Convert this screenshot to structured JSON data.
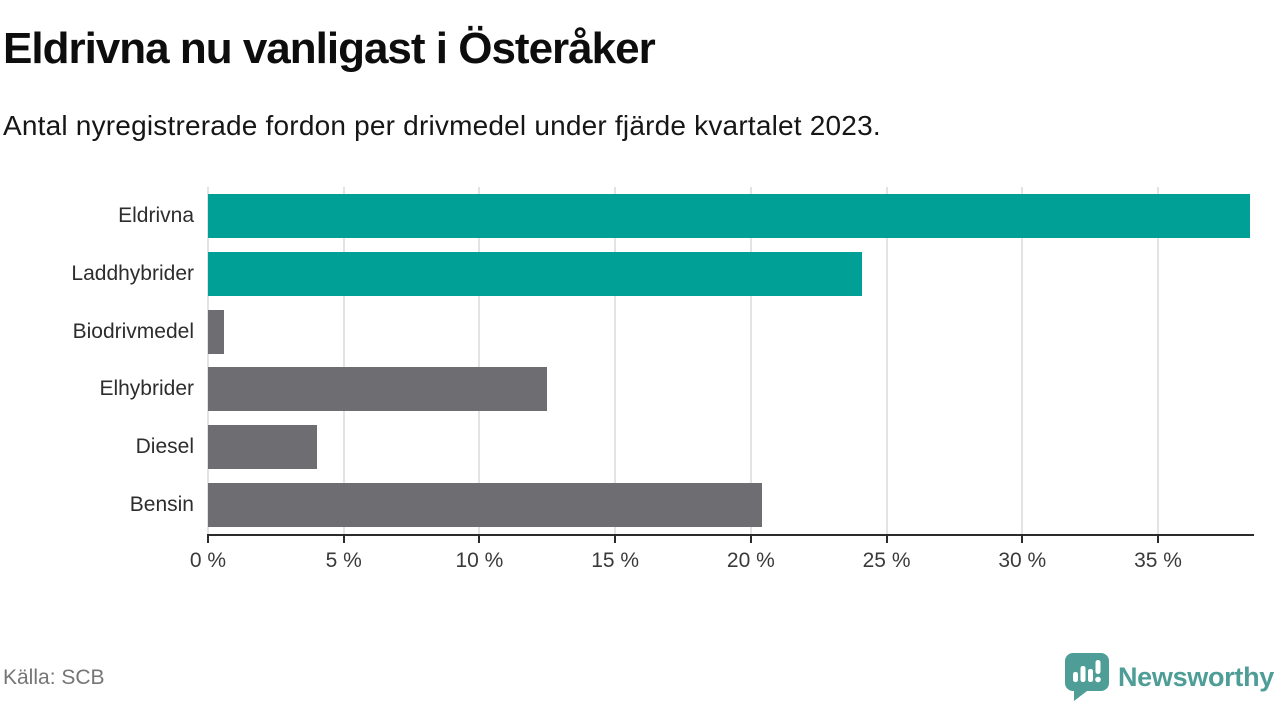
{
  "header": {
    "title": "Eldrivna nu vanligast i Österåker",
    "subtitle": "Antal nyregistrerade fordon per drivmedel under fjärde kvartalet 2023."
  },
  "chart_data": {
    "type": "bar",
    "orientation": "horizontal",
    "title": "Eldrivna nu vanligast i Österåker",
    "subtitle": "Antal nyregistrerade fordon per drivmedel under fjärde kvartalet 2023.",
    "categories": [
      "Eldrivna",
      "Laddhybrider",
      "Biodrivmedel",
      "Elhybrider",
      "Diesel",
      "Bensin"
    ],
    "values": [
      38.4,
      24.1,
      0.6,
      12.5,
      4.0,
      20.4
    ],
    "unit": "%",
    "bar_colors": [
      "#00A096",
      "#00A096",
      "#6E6E72",
      "#6E6E72",
      "#6E6E72",
      "#6E6E72"
    ],
    "highlight_color": "#00A096",
    "default_color": "#6E6E72",
    "xlim": [
      0,
      38.5
    ],
    "x_ticks": [
      0,
      5,
      10,
      15,
      20,
      25,
      30,
      35
    ],
    "x_tick_labels": [
      "0 %",
      "5 %",
      "10 %",
      "15 %",
      "20 %",
      "25 %",
      "30 %",
      "35 %"
    ],
    "xlabel": "",
    "ylabel": "",
    "grid": "vertical-only",
    "legend": "none"
  },
  "footer": {
    "source": "Källa: SCB",
    "brand": {
      "name": "Newsworthy",
      "color": "#4e9d97"
    }
  }
}
